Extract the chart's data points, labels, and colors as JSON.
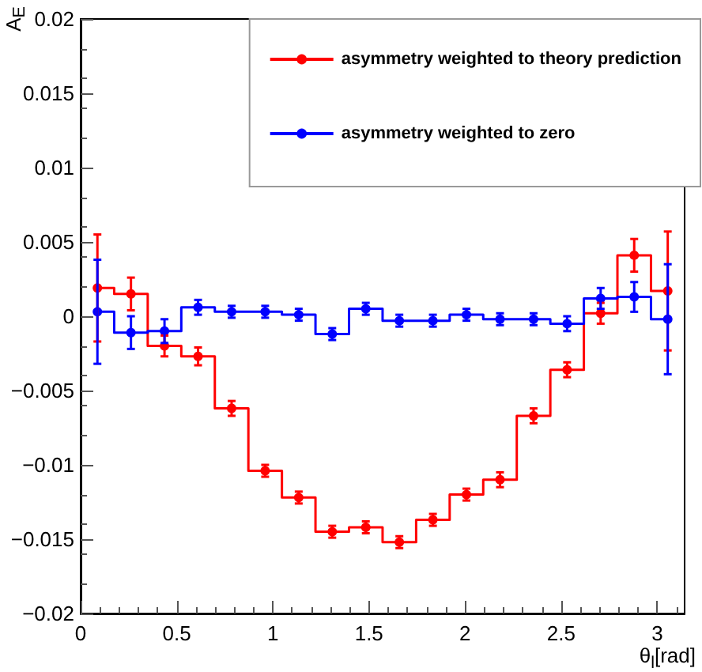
{
  "chart_data": {
    "type": "step",
    "xlabel": "θ$_{l}$[rad]",
    "ylabel": "A$_{E}$",
    "x": [
      0.0873,
      0.2618,
      0.4363,
      0.6109,
      0.7854,
      0.9599,
      1.1345,
      1.309,
      1.4835,
      1.6581,
      1.8326,
      2.0071,
      2.1817,
      2.3562,
      2.5307,
      2.7053,
      2.8798,
      3.0543
    ],
    "series": [
      {
        "name": "asymmetry weighted to theory prediction",
        "color": "#ff0000",
        "values": [
          0.0019,
          0.0015,
          -0.002,
          -0.0027,
          -0.0062,
          -0.0104,
          -0.0122,
          -0.0145,
          -0.0142,
          -0.0152,
          -0.0137,
          -0.012,
          -0.011,
          -0.0067,
          -0.0036,
          0.0002,
          0.0041,
          0.0017
        ],
        "errors": [
          0.0036,
          0.0011,
          0.0007,
          0.0006,
          0.0005,
          0.0004,
          0.0004,
          0.0004,
          0.0004,
          0.0004,
          0.0004,
          0.0004,
          0.0005,
          0.0005,
          0.0005,
          0.0007,
          0.0011,
          0.004
        ]
      },
      {
        "name": "asymmetry weighted to zero",
        "color": "#0000ff",
        "values": [
          0.0003,
          -0.0011,
          -0.001,
          0.0006,
          0.0003,
          0.0003,
          0.0001,
          -0.0012,
          0.0005,
          -0.0003,
          -0.0003,
          0.0001,
          -0.0002,
          -0.0002,
          -0.0005,
          0.0012,
          0.0013,
          -0.0002
        ],
        "errors": [
          0.0035,
          0.0011,
          0.0008,
          0.0005,
          0.0004,
          0.0004,
          0.0004,
          0.0004,
          0.0004,
          0.0004,
          0.0004,
          0.0004,
          0.0004,
          0.0004,
          0.0005,
          0.0007,
          0.001,
          0.0037
        ]
      }
    ],
    "xlim": [
      0,
      3.142
    ],
    "xticks": [
      0,
      0.5,
      1,
      1.5,
      2,
      2.5,
      3
    ],
    "ylim": [
      -0.02,
      0.02
    ],
    "yticks": [
      {
        "value": -0.02,
        "label": "−0.02"
      },
      {
        "value": -0.015,
        "label": "−0.015"
      },
      {
        "value": -0.01,
        "label": "−0.01"
      },
      {
        "value": -0.005,
        "label": "−0.005"
      },
      0,
      0.005,
      0.01,
      0.015,
      0.02
    ],
    "grid": false,
    "legend": "top right",
    "marker": "circle",
    "line_style": "solid"
  }
}
